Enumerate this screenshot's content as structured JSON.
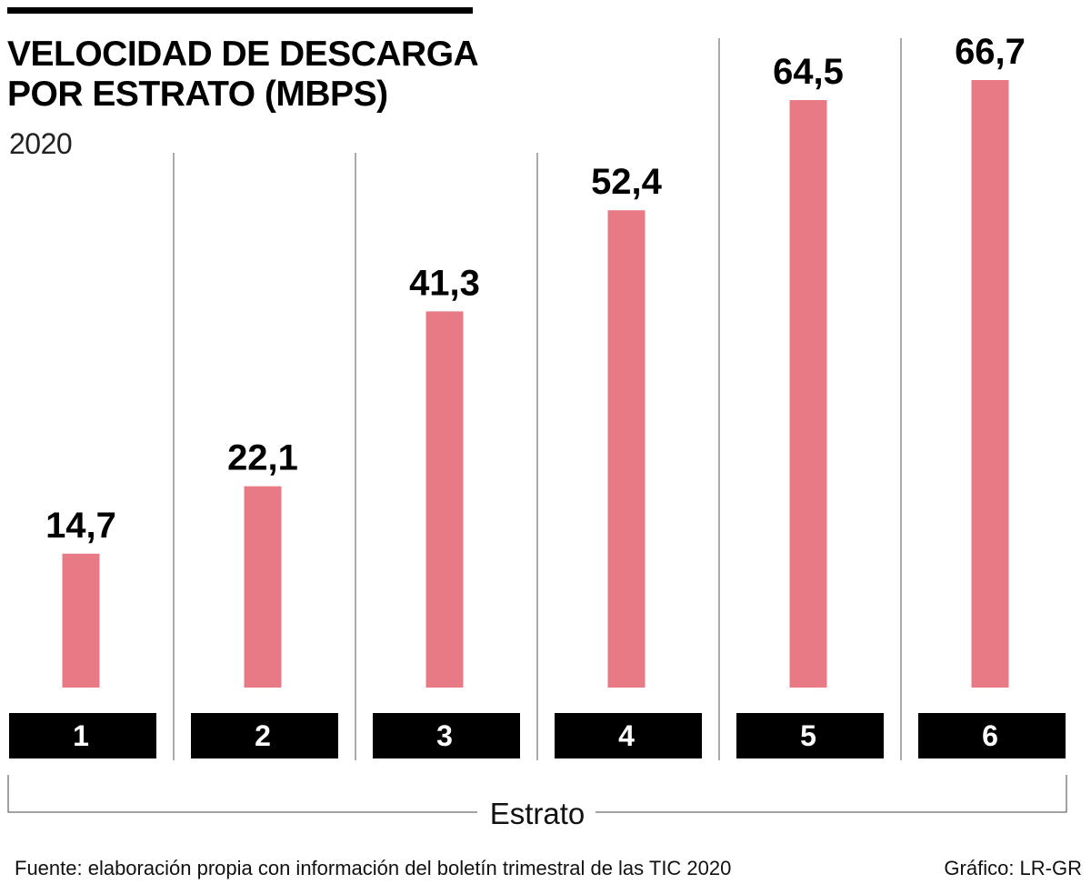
{
  "header": {
    "title_line1": "VELOCIDAD DE DESCARGA",
    "title_line2": "POR ESTRATO (MBPS)",
    "subtitle": "2020"
  },
  "chart_data": {
    "type": "bar",
    "title": "VELOCIDAD DE DESCARGA POR ESTRATO (MBPS)",
    "subtitle": "2020",
    "xlabel": "Estrato",
    "ylabel": "",
    "categories": [
      "1",
      "2",
      "3",
      "4",
      "5",
      "6"
    ],
    "values": [
      14.7,
      22.1,
      41.3,
      52.4,
      64.5,
      66.7
    ],
    "value_labels": [
      "14,7",
      "22,1",
      "41,3",
      "52,4",
      "64,5",
      "66,7"
    ],
    "ylim": [
      0,
      66.7
    ],
    "grid": false,
    "legend": "none",
    "colors": {
      "bar": "#E87A85",
      "category_box": "#000000",
      "category_text": "#FFFFFF",
      "separator": "#555555"
    }
  },
  "footer": {
    "source": "Fuente: elaboración propia con información del boletín trimestral de las TIC 2020",
    "credit": "Gráfico: LR-GR"
  }
}
